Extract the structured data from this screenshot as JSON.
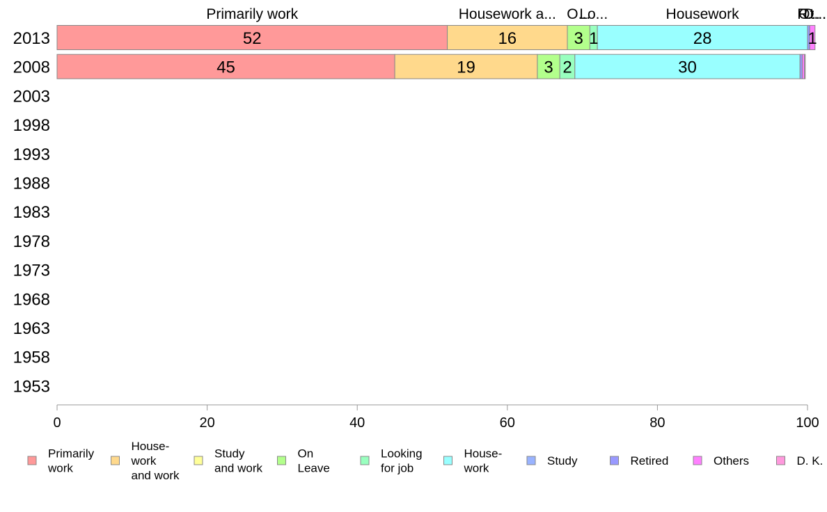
{
  "chart_data": {
    "type": "bar",
    "orientation": "horizontal",
    "stacked": true,
    "categories": [
      "2013",
      "2008",
      "2003",
      "1998",
      "1993",
      "1988",
      "1983",
      "1978",
      "1973",
      "1968",
      "1963",
      "1958",
      "1953"
    ],
    "series": [
      {
        "name": "Primarily work",
        "color": "#ff9999",
        "values": [
          52,
          45,
          null,
          null,
          null,
          null,
          null,
          null,
          null,
          null,
          null,
          null,
          null
        ]
      },
      {
        "name": "Housework and work",
        "color": "#ffd98c",
        "values": [
          16,
          19,
          null,
          null,
          null,
          null,
          null,
          null,
          null,
          null,
          null,
          null,
          null
        ]
      },
      {
        "name": "Study and work",
        "color": "#ffff99",
        "values": [
          0,
          0,
          null,
          null,
          null,
          null,
          null,
          null,
          null,
          null,
          null,
          null,
          null
        ]
      },
      {
        "name": "On Leave",
        "color": "#b3ff8c",
        "values": [
          3,
          3,
          null,
          null,
          null,
          null,
          null,
          null,
          null,
          null,
          null,
          null,
          null
        ]
      },
      {
        "name": "Looking for job",
        "color": "#99ffbf",
        "values": [
          1,
          2,
          null,
          null,
          null,
          null,
          null,
          null,
          null,
          null,
          null,
          null,
          null
        ]
      },
      {
        "name": "Housework",
        "color": "#99ffff",
        "values": [
          28,
          30,
          null,
          null,
          null,
          null,
          null,
          null,
          null,
          null,
          null,
          null,
          null
        ]
      },
      {
        "name": "Study",
        "color": "#99b3ff",
        "values": [
          0,
          0,
          null,
          null,
          null,
          null,
          null,
          null,
          null,
          null,
          null,
          null,
          null
        ]
      },
      {
        "name": "Retired",
        "color": "#9999ff",
        "values": [
          0.3,
          0.3,
          null,
          null,
          null,
          null,
          null,
          null,
          null,
          null,
          null,
          null,
          null
        ]
      },
      {
        "name": "Others",
        "color": "#ff80ff",
        "values": [
          0.7,
          0.3,
          null,
          null,
          null,
          null,
          null,
          null,
          null,
          null,
          null,
          null,
          null
        ]
      },
      {
        "name": "D. K.",
        "color": "#ff99dd",
        "values": [
          0,
          0.1,
          null,
          null,
          null,
          null,
          null,
          null,
          null,
          null,
          null,
          null,
          null
        ]
      }
    ],
    "data_labels": [
      [
        "52",
        "16",
        "",
        "3",
        "1",
        "28",
        "",
        "",
        "1",
        ""
      ],
      [
        "45",
        "19",
        "",
        "3",
        "2",
        "30",
        "",
        "",
        "",
        ""
      ]
    ],
    "top_labels": [
      {
        "text": "Primarily work",
        "series": 0
      },
      {
        "text": "Housework a...",
        "series": 1
      },
      {
        "text": "O...",
        "series": 3
      },
      {
        "text": "Lo...",
        "series": 4
      },
      {
        "text": "Housework",
        "series": 5
      },
      {
        "text": "R...",
        "series": 7
      },
      {
        "text": "Ot...",
        "series": 8
      },
      {
        "text": "D...",
        "series": 9
      }
    ],
    "xticks": [
      "0",
      "20",
      "40",
      "60",
      "80",
      "100"
    ],
    "xlim": [
      0,
      100
    ],
    "legend": {
      "position": "bottom",
      "entries": [
        {
          "lines": [
            "Primarily",
            "work"
          ],
          "color": "#ff9999"
        },
        {
          "lines": [
            "House-",
            "work",
            "and work"
          ],
          "color": "#ffd98c"
        },
        {
          "lines": [
            "Study",
            "and work"
          ],
          "color": "#ffff99"
        },
        {
          "lines": [
            "On",
            "Leave"
          ],
          "color": "#b3ff8c"
        },
        {
          "lines": [
            "Looking",
            "for job"
          ],
          "color": "#99ffbf"
        },
        {
          "lines": [
            "House-",
            "work"
          ],
          "color": "#99ffff"
        },
        {
          "lines": [
            "Study"
          ],
          "color": "#99b3ff"
        },
        {
          "lines": [
            "Retired"
          ],
          "color": "#9999ff"
        },
        {
          "lines": [
            "Others"
          ],
          "color": "#ff80ff"
        },
        {
          "lines": [
            "D. K."
          ],
          "color": "#ff99dd"
        }
      ]
    },
    "grid": false
  }
}
